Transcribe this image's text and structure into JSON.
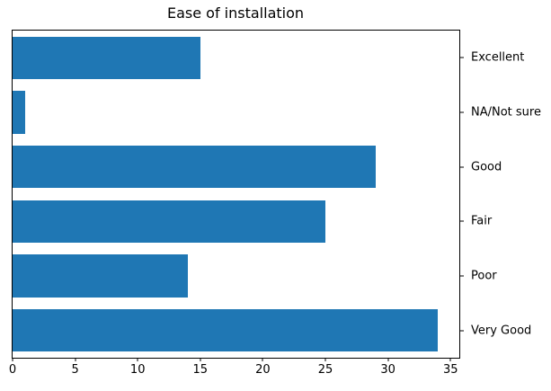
{
  "title": "Ease of installation",
  "chart_data": {
    "type": "bar",
    "orientation": "horizontal",
    "title": "Ease of installation",
    "categories": [
      "Excellent",
      "NA/Not sure",
      "Good",
      "Fair",
      "Poor",
      "Very Good"
    ],
    "values": [
      15,
      1,
      29,
      25,
      14,
      34
    ],
    "xlabel": "",
    "ylabel": "",
    "xlim": [
      0,
      35.7
    ],
    "x_ticks": [
      0,
      5,
      10,
      15,
      20,
      25,
      30,
      35
    ],
    "category_label_side": "right",
    "grid": false,
    "legend": null,
    "bar_color": "#1f77b4",
    "axis_color": "#000000",
    "text_color": "#000000",
    "background_color": "#ffffff"
  }
}
